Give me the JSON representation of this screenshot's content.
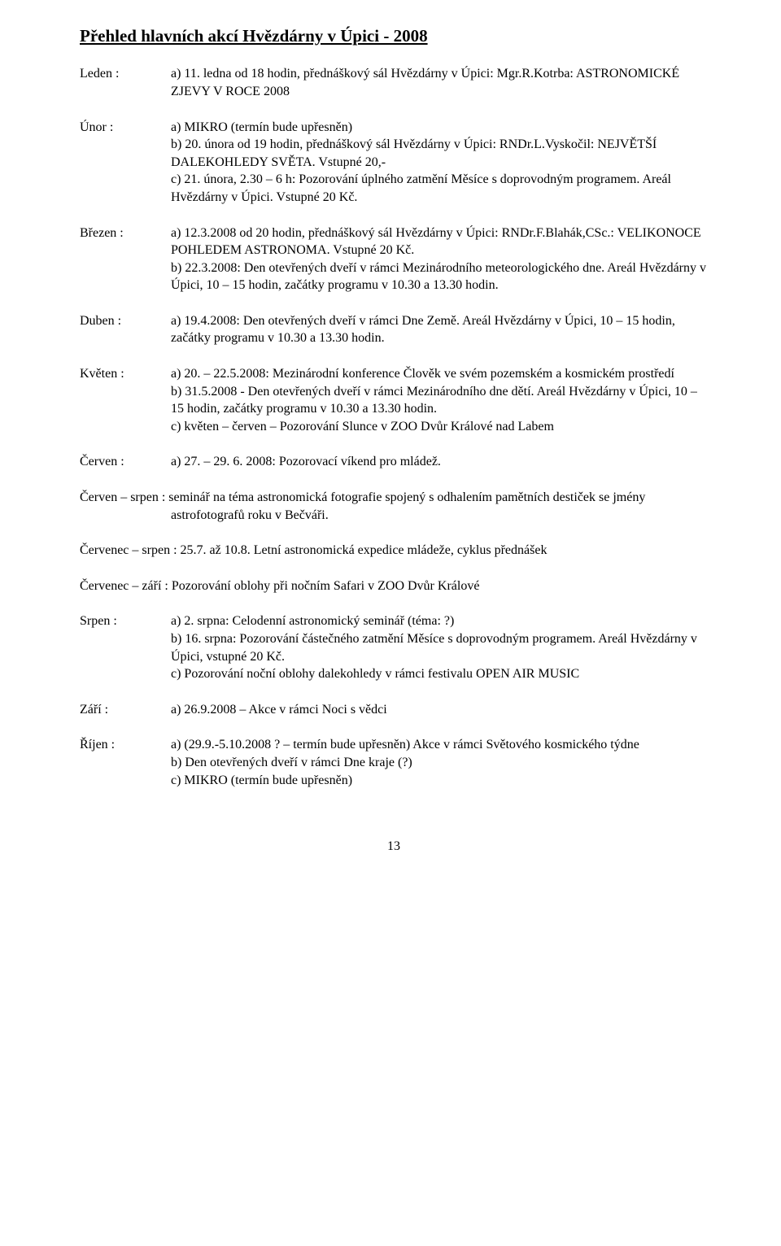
{
  "title": "Přehled hlavních akcí Hvězdárny v Úpici -  2008",
  "months": {
    "leden": {
      "label": "Leden :",
      "text": "a) 11. ledna od 18 hodin, přednáškový sál Hvězdárny v Úpici: Mgr.R.Kotrba: ASTRONOMICKÉ ZJEVY V ROCE 2008"
    },
    "unor": {
      "label": "Únor :",
      "text": "a) MIKRO (termín bude upřesněn)\nb) 20. února od 19 hodin, přednáškový sál Hvězdárny v Úpici: RNDr.L.Vyskočil: NEJVĚTŠÍ DALEKOHLEDY SVĚTA. Vstupné 20,-\nc) 21. února, 2.30 – 6 h: Pozorování úplného zatmění Měsíce s doprovodným programem. Areál Hvězdárny v Úpici. Vstupné 20 Kč."
    },
    "brezen": {
      "label": "Březen :",
      "text": "a) 12.3.2008 od 20 hodin, přednáškový sál Hvězdárny v Úpici: RNDr.F.Blahák,CSc.: VELIKONOCE POHLEDEM ASTRONOMA. Vstupné 20 Kč.\nb) 22.3.2008: Den otevřených dveří v rámci Mezinárodního meteorologického dne. Areál Hvězdárny v Úpici, 10 – 15 hodin, začátky programu v 10.30 a 13.30 hodin."
    },
    "duben": {
      "label": "Duben :",
      "text": "a) 19.4.2008: Den otevřených dveří v rámci Dne Země. Areál Hvězdárny v Úpici, 10 – 15 hodin, začátky programu v 10.30 a 13.30 hodin."
    },
    "kveten": {
      "label": "Květen :",
      "text": "a) 20. – 22.5.2008: Mezinárodní konference Člověk ve svém pozemském a kosmickém prostředí\nb) 31.5.2008 - Den otevřených dveří v rámci Mezinárodního dne dětí. Areál Hvězdárny v Úpici, 10 – 15 hodin, začátky programu v 10.30 a 13.30 hodin.\nc) květen – červen – Pozorování Slunce v ZOO Dvůr Králové nad Labem"
    },
    "cerven": {
      "label": "Červen :",
      "text": "a) 27. – 29. 6. 2008: Pozorovací víkend pro mládež."
    },
    "srpen": {
      "label": "Srpen :",
      "text": "a) 2. srpna: Celodenní astronomický seminář (téma: ?)\nb) 16. srpna: Pozorování částečného zatmění Měsíce s doprovodným programem. Areál Hvězdárny v Úpici, vstupné 20 Kč.\nc) Pozorování noční oblohy dalekohledy v rámci festivalu OPEN AIR MUSIC"
    },
    "zari": {
      "label": "Září :",
      "text": "a) 26.9.2008 – Akce v rámci Noci s vědci"
    },
    "rijen": {
      "label": "Říjen :",
      "text": "a) (29.9.-5.10.2008 ? – termín bude upřesněn) Akce v rámci Světového kosmického týdne\nb) Den otevřených dveří v rámci Dne kraje (?)\nc) MIKRO (termín bude upřesněn)"
    }
  },
  "paragraphs": {
    "cerven_srpen": "Červen – srpen : seminář na téma astronomická fotografie spojený s odhalením pamětních destiček se jmény astrofotografů roku v Bečváři.",
    "cervenec_srpen": "Červenec – srpen :  25.7. až 10.8. Letní astronomická expedice mládeže, cyklus přednášek",
    "cervenec_zari": "Červenec – září :  Pozorování oblohy při nočním Safari v ZOO Dvůr Králové"
  },
  "page_number": "13"
}
